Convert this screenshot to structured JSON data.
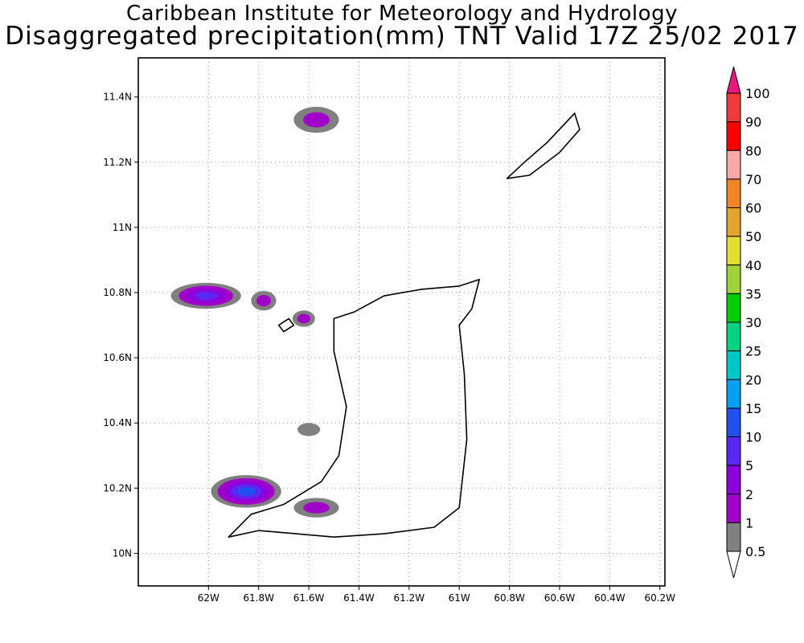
{
  "header": {
    "title": "Caribbean Institute for Meteorology and Hydrology",
    "subtitle": "Disaggregated precipitation(mm) TNT Valid 17Z 25/02 2017"
  },
  "map": {
    "lon_range": [
      -62.28,
      -60.18
    ],
    "lat_range": [
      9.9,
      11.52
    ],
    "x_ticks": [
      {
        "value": -62.0,
        "label": "62W"
      },
      {
        "value": -61.8,
        "label": "61.8W"
      },
      {
        "value": -61.6,
        "label": "61.6W"
      },
      {
        "value": -61.4,
        "label": "61.4W"
      },
      {
        "value": -61.2,
        "label": "61.2W"
      },
      {
        "value": -61.0,
        "label": "61W"
      },
      {
        "value": -60.8,
        "label": "60.8W"
      },
      {
        "value": -60.6,
        "label": "60.6W"
      },
      {
        "value": -60.4,
        "label": "60.4W"
      },
      {
        "value": -60.2,
        "label": "60.2W"
      }
    ],
    "y_ticks": [
      {
        "value": 10.0,
        "label": "10N"
      },
      {
        "value": 10.2,
        "label": "10.2N"
      },
      {
        "value": 10.4,
        "label": "10.4N"
      },
      {
        "value": 10.6,
        "label": "10.6N"
      },
      {
        "value": 10.8,
        "label": "10.8N"
      },
      {
        "value": 11.0,
        "label": "11N"
      },
      {
        "value": 11.2,
        "label": "11.2N"
      },
      {
        "value": 11.4,
        "label": "11.4N"
      }
    ],
    "grid": "dotted"
  },
  "legend": {
    "levels": [
      {
        "label": "100",
        "color": "#e8187f"
      },
      {
        "label": "90",
        "color": "#f03b3b"
      },
      {
        "label": "80",
        "color": "#ff0000"
      },
      {
        "label": "70",
        "color": "#f8a8a8"
      },
      {
        "label": "60",
        "color": "#f08428"
      },
      {
        "label": "50",
        "color": "#e4a530"
      },
      {
        "label": "40",
        "color": "#e4dc32"
      },
      {
        "label": "35",
        "color": "#a0d23c"
      },
      {
        "label": "30",
        "color": "#00cd00"
      },
      {
        "label": "25",
        "color": "#00d282"
      },
      {
        "label": "20",
        "color": "#00c8c8"
      },
      {
        "label": "15",
        "color": "#00a0f0"
      },
      {
        "label": "10",
        "color": "#2050f0"
      },
      {
        "label": "5",
        "color": "#5a28f0"
      },
      {
        "label": "2",
        "color": "#8c00dc"
      },
      {
        "label": "1",
        "color": "#a000c8"
      },
      {
        "label": "0.5",
        "color": "#808080"
      }
    ],
    "bottom_color": "#ffffff"
  },
  "precip_cells": [
    {
      "lon": -62.01,
      "lat": 10.79,
      "rx": 0.14,
      "ry": 0.04,
      "levels": [
        "0.5",
        "1",
        "2",
        "5"
      ]
    },
    {
      "lon": -61.78,
      "lat": 10.775,
      "rx": 0.05,
      "ry": 0.03,
      "levels": [
        "0.5",
        "1"
      ]
    },
    {
      "lon": -61.57,
      "lat": 11.33,
      "rx": 0.09,
      "ry": 0.04,
      "levels": [
        "0.5",
        "1"
      ]
    },
    {
      "lon": -61.62,
      "lat": 10.72,
      "rx": 0.045,
      "ry": 0.025,
      "levels": [
        "0.5",
        "1"
      ]
    },
    {
      "lon": -61.6,
      "lat": 10.38,
      "rx": 0.045,
      "ry": 0.02,
      "levels": [
        "0.5"
      ]
    },
    {
      "lon": -61.85,
      "lat": 10.19,
      "rx": 0.14,
      "ry": 0.05,
      "levels": [
        "0.5",
        "1",
        "2",
        "5",
        "10"
      ]
    },
    {
      "lon": -61.57,
      "lat": 10.14,
      "rx": 0.09,
      "ry": 0.03,
      "levels": [
        "0.5",
        "1"
      ]
    }
  ],
  "coastlines": [
    {
      "name": "Trinidad",
      "points": [
        [
          -61.5,
          10.72
        ],
        [
          -61.42,
          10.74
        ],
        [
          -61.3,
          10.79
        ],
        [
          -61.15,
          10.81
        ],
        [
          -61.0,
          10.82
        ],
        [
          -60.92,
          10.84
        ],
        [
          -60.95,
          10.75
        ],
        [
          -61.0,
          10.7
        ],
        [
          -60.98,
          10.55
        ],
        [
          -60.97,
          10.35
        ],
        [
          -61.0,
          10.14
        ],
        [
          -61.1,
          10.08
        ],
        [
          -61.3,
          10.06
        ],
        [
          -61.5,
          10.05
        ],
        [
          -61.65,
          10.06
        ],
        [
          -61.8,
          10.07
        ],
        [
          -61.92,
          10.05
        ],
        [
          -61.83,
          10.12
        ],
        [
          -61.7,
          10.15
        ],
        [
          -61.55,
          10.22
        ],
        [
          -61.48,
          10.3
        ],
        [
          -61.45,
          10.45
        ],
        [
          -61.5,
          10.62
        ],
        [
          -61.5,
          10.72
        ]
      ]
    },
    {
      "name": "Tobago",
      "points": [
        [
          -60.81,
          11.15
        ],
        [
          -60.74,
          11.2
        ],
        [
          -60.65,
          11.26
        ],
        [
          -60.54,
          11.35
        ],
        [
          -60.52,
          11.3
        ],
        [
          -60.6,
          11.23
        ],
        [
          -60.72,
          11.16
        ],
        [
          -60.81,
          11.15
        ]
      ]
    },
    {
      "name": "Chacachacare",
      "points": [
        [
          -61.72,
          10.7
        ],
        [
          -61.68,
          10.72
        ],
        [
          -61.66,
          10.7
        ],
        [
          -61.7,
          10.68
        ],
        [
          -61.72,
          10.7
        ]
      ]
    }
  ]
}
